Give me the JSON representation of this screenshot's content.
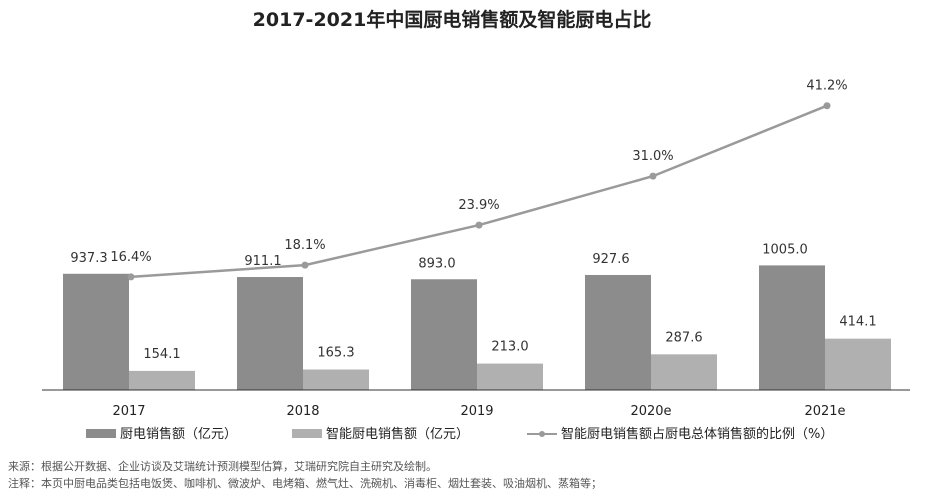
{
  "chart_data": {
    "type": "bar",
    "title": "2017-2021年中国厨电销售额及智能厨电占比",
    "categories": [
      "2017",
      "2018",
      "2019",
      "2020e",
      "2021e"
    ],
    "series": [
      {
        "name": "厨电销售额（亿元）",
        "kind": "bar",
        "color": "#8c8c8c",
        "values": [
          937.3,
          911.1,
          893.0,
          927.6,
          1005.0
        ],
        "labels": [
          "937.3",
          "911.1",
          "893.0",
          "927.6",
          "1005.0"
        ]
      },
      {
        "name": "智能厨电销售额（亿元）",
        "kind": "bar",
        "color": "#b0b0b0",
        "values": [
          154.1,
          165.3,
          213.0,
          287.6,
          414.1
        ],
        "labels": [
          "154.1",
          "165.3",
          "213.0",
          "287.6",
          "414.1"
        ]
      },
      {
        "name": "智能厨电销售额占厨电总体销售额的比例（%）",
        "kind": "line",
        "color": "#9a9a9a",
        "values": [
          16.4,
          18.1,
          23.9,
          31.0,
          41.2
        ],
        "labels": [
          "16.4%",
          "18.1%",
          "23.9%",
          "31.0%",
          "41.2%"
        ]
      }
    ],
    "ylim_bar": [
      0,
      1200
    ],
    "ylim_line": [
      0,
      50
    ],
    "legend": "bottom",
    "grid": false
  },
  "notes": {
    "source": "来源：根据公开数据、企业访谈及艾瑞统计预测模型估算，艾瑞研究院自主研究及绘制。",
    "remark": "注释：本页中厨电品类包括电饭煲、咖啡机、微波炉、电烤箱、燃气灶、洗碗机、消毒柜、烟灶套装、吸油烟机、蒸箱等；"
  }
}
